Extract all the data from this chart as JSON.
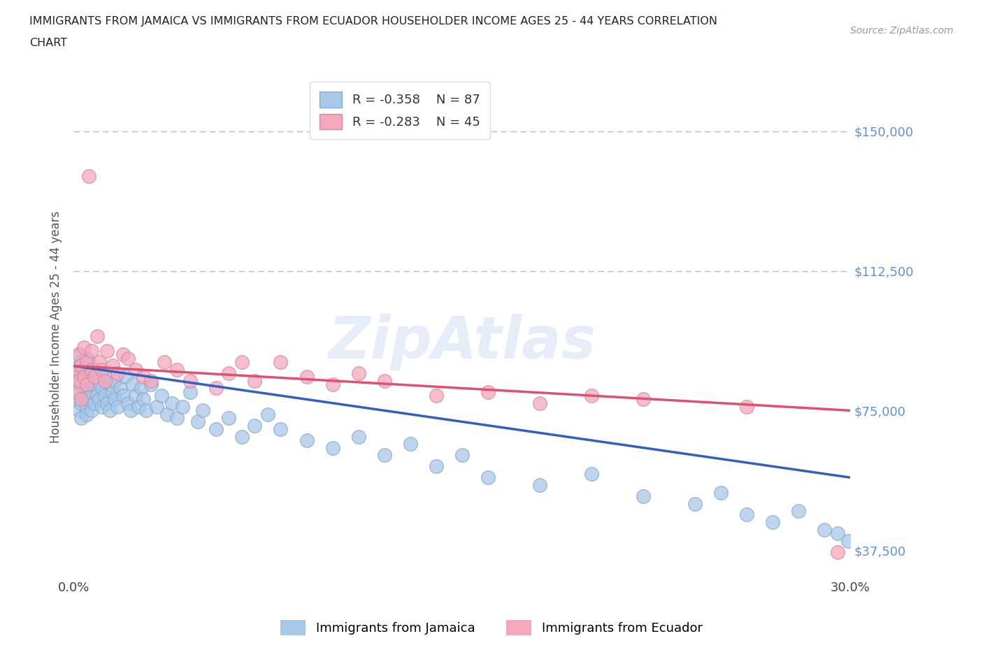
{
  "title_line1": "IMMIGRANTS FROM JAMAICA VS IMMIGRANTS FROM ECUADOR HOUSEHOLDER INCOME AGES 25 - 44 YEARS CORRELATION",
  "title_line2": "CHART",
  "source_text": "Source: ZipAtlas.com",
  "ylabel": "Householder Income Ages 25 - 44 years",
  "xlim": [
    0.0,
    0.3
  ],
  "ylim": [
    30000,
    165000
  ],
  "yticks": [
    37500,
    75000,
    112500,
    150000
  ],
  "ytick_labels": [
    "$37,500",
    "$75,000",
    "$112,500",
    "$150,000"
  ],
  "xticks": [
    0.0,
    0.05,
    0.1,
    0.15,
    0.2,
    0.25,
    0.3
  ],
  "xtick_labels": [
    "0.0%",
    "",
    "",
    "",
    "",
    "",
    "30.0%"
  ],
  "jamaica_R": -0.358,
  "jamaica_N": 87,
  "ecuador_R": -0.283,
  "ecuador_N": 45,
  "jamaica_color": "#a8c8e8",
  "ecuador_color": "#f4a8bc",
  "jamaica_line_color": "#3060c0",
  "ecuador_line_color": "#e05070",
  "legend_label_jamaica": "Immigrants from Jamaica",
  "legend_label_ecuador": "Immigrants from Ecuador",
  "background_color": "#ffffff",
  "grid_color": "#bbbbbb",
  "title_color": "#222222",
  "axis_label_color": "#555555",
  "ytick_color": "#6090d8",
  "watermark": "ZipAtlas",
  "jam_line_x0": 0.0,
  "jam_line_y0": 87000,
  "jam_line_x1": 0.3,
  "jam_line_y1": 57000,
  "ecu_line_x0": 0.0,
  "ecu_line_y0": 87000,
  "ecu_line_x1": 0.3,
  "ecu_line_y1": 75000,
  "jamaica_x": [
    0.001,
    0.001,
    0.001,
    0.002,
    0.002,
    0.002,
    0.002,
    0.003,
    0.003,
    0.003,
    0.003,
    0.004,
    0.004,
    0.004,
    0.005,
    0.005,
    0.005,
    0.005,
    0.006,
    0.006,
    0.006,
    0.007,
    0.007,
    0.007,
    0.008,
    0.008,
    0.009,
    0.009,
    0.01,
    0.01,
    0.011,
    0.011,
    0.012,
    0.012,
    0.013,
    0.014,
    0.014,
    0.015,
    0.016,
    0.016,
    0.017,
    0.018,
    0.019,
    0.02,
    0.021,
    0.022,
    0.023,
    0.024,
    0.025,
    0.026,
    0.027,
    0.028,
    0.03,
    0.032,
    0.034,
    0.036,
    0.038,
    0.04,
    0.042,
    0.045,
    0.048,
    0.05,
    0.055,
    0.06,
    0.065,
    0.07,
    0.075,
    0.08,
    0.09,
    0.1,
    0.11,
    0.12,
    0.13,
    0.14,
    0.15,
    0.16,
    0.18,
    0.2,
    0.22,
    0.24,
    0.25,
    0.26,
    0.27,
    0.28,
    0.29,
    0.295,
    0.299
  ],
  "jamaica_y": [
    85000,
    78000,
    83000,
    80000,
    90000,
    75000,
    87000,
    82000,
    77000,
    88000,
    73000,
    86000,
    79000,
    84000,
    81000,
    76000,
    89000,
    74000,
    83000,
    78000,
    88000,
    80000,
    75000,
    85000,
    82000,
    77000,
    79000,
    86000,
    83000,
    78000,
    81000,
    76000,
    84000,
    79000,
    77000,
    82000,
    75000,
    80000,
    78000,
    83000,
    76000,
    81000,
    79000,
    84000,
    77000,
    75000,
    82000,
    79000,
    76000,
    81000,
    78000,
    75000,
    82000,
    76000,
    79000,
    74000,
    77000,
    73000,
    76000,
    80000,
    72000,
    75000,
    70000,
    73000,
    68000,
    71000,
    74000,
    70000,
    67000,
    65000,
    68000,
    63000,
    66000,
    60000,
    63000,
    57000,
    55000,
    58000,
    52000,
    50000,
    53000,
    47000,
    45000,
    48000,
    43000,
    42000,
    40000
  ],
  "ecuador_x": [
    0.001,
    0.001,
    0.002,
    0.002,
    0.003,
    0.003,
    0.004,
    0.004,
    0.005,
    0.005,
    0.006,
    0.007,
    0.007,
    0.008,
    0.009,
    0.01,
    0.011,
    0.012,
    0.013,
    0.015,
    0.017,
    0.019,
    0.021,
    0.024,
    0.027,
    0.03,
    0.035,
    0.04,
    0.045,
    0.055,
    0.06,
    0.065,
    0.07,
    0.08,
    0.09,
    0.1,
    0.11,
    0.12,
    0.14,
    0.16,
    0.18,
    0.2,
    0.22,
    0.26,
    0.295
  ],
  "ecuador_y": [
    85000,
    80000,
    90000,
    83000,
    87000,
    78000,
    84000,
    92000,
    88000,
    82000,
    138000,
    86000,
    91000,
    84000,
    95000,
    88000,
    86000,
    83000,
    91000,
    87000,
    85000,
    90000,
    89000,
    86000,
    84000,
    83000,
    88000,
    86000,
    83000,
    81000,
    85000,
    88000,
    83000,
    88000,
    84000,
    82000,
    85000,
    83000,
    79000,
    80000,
    77000,
    79000,
    78000,
    76000,
    37000
  ]
}
